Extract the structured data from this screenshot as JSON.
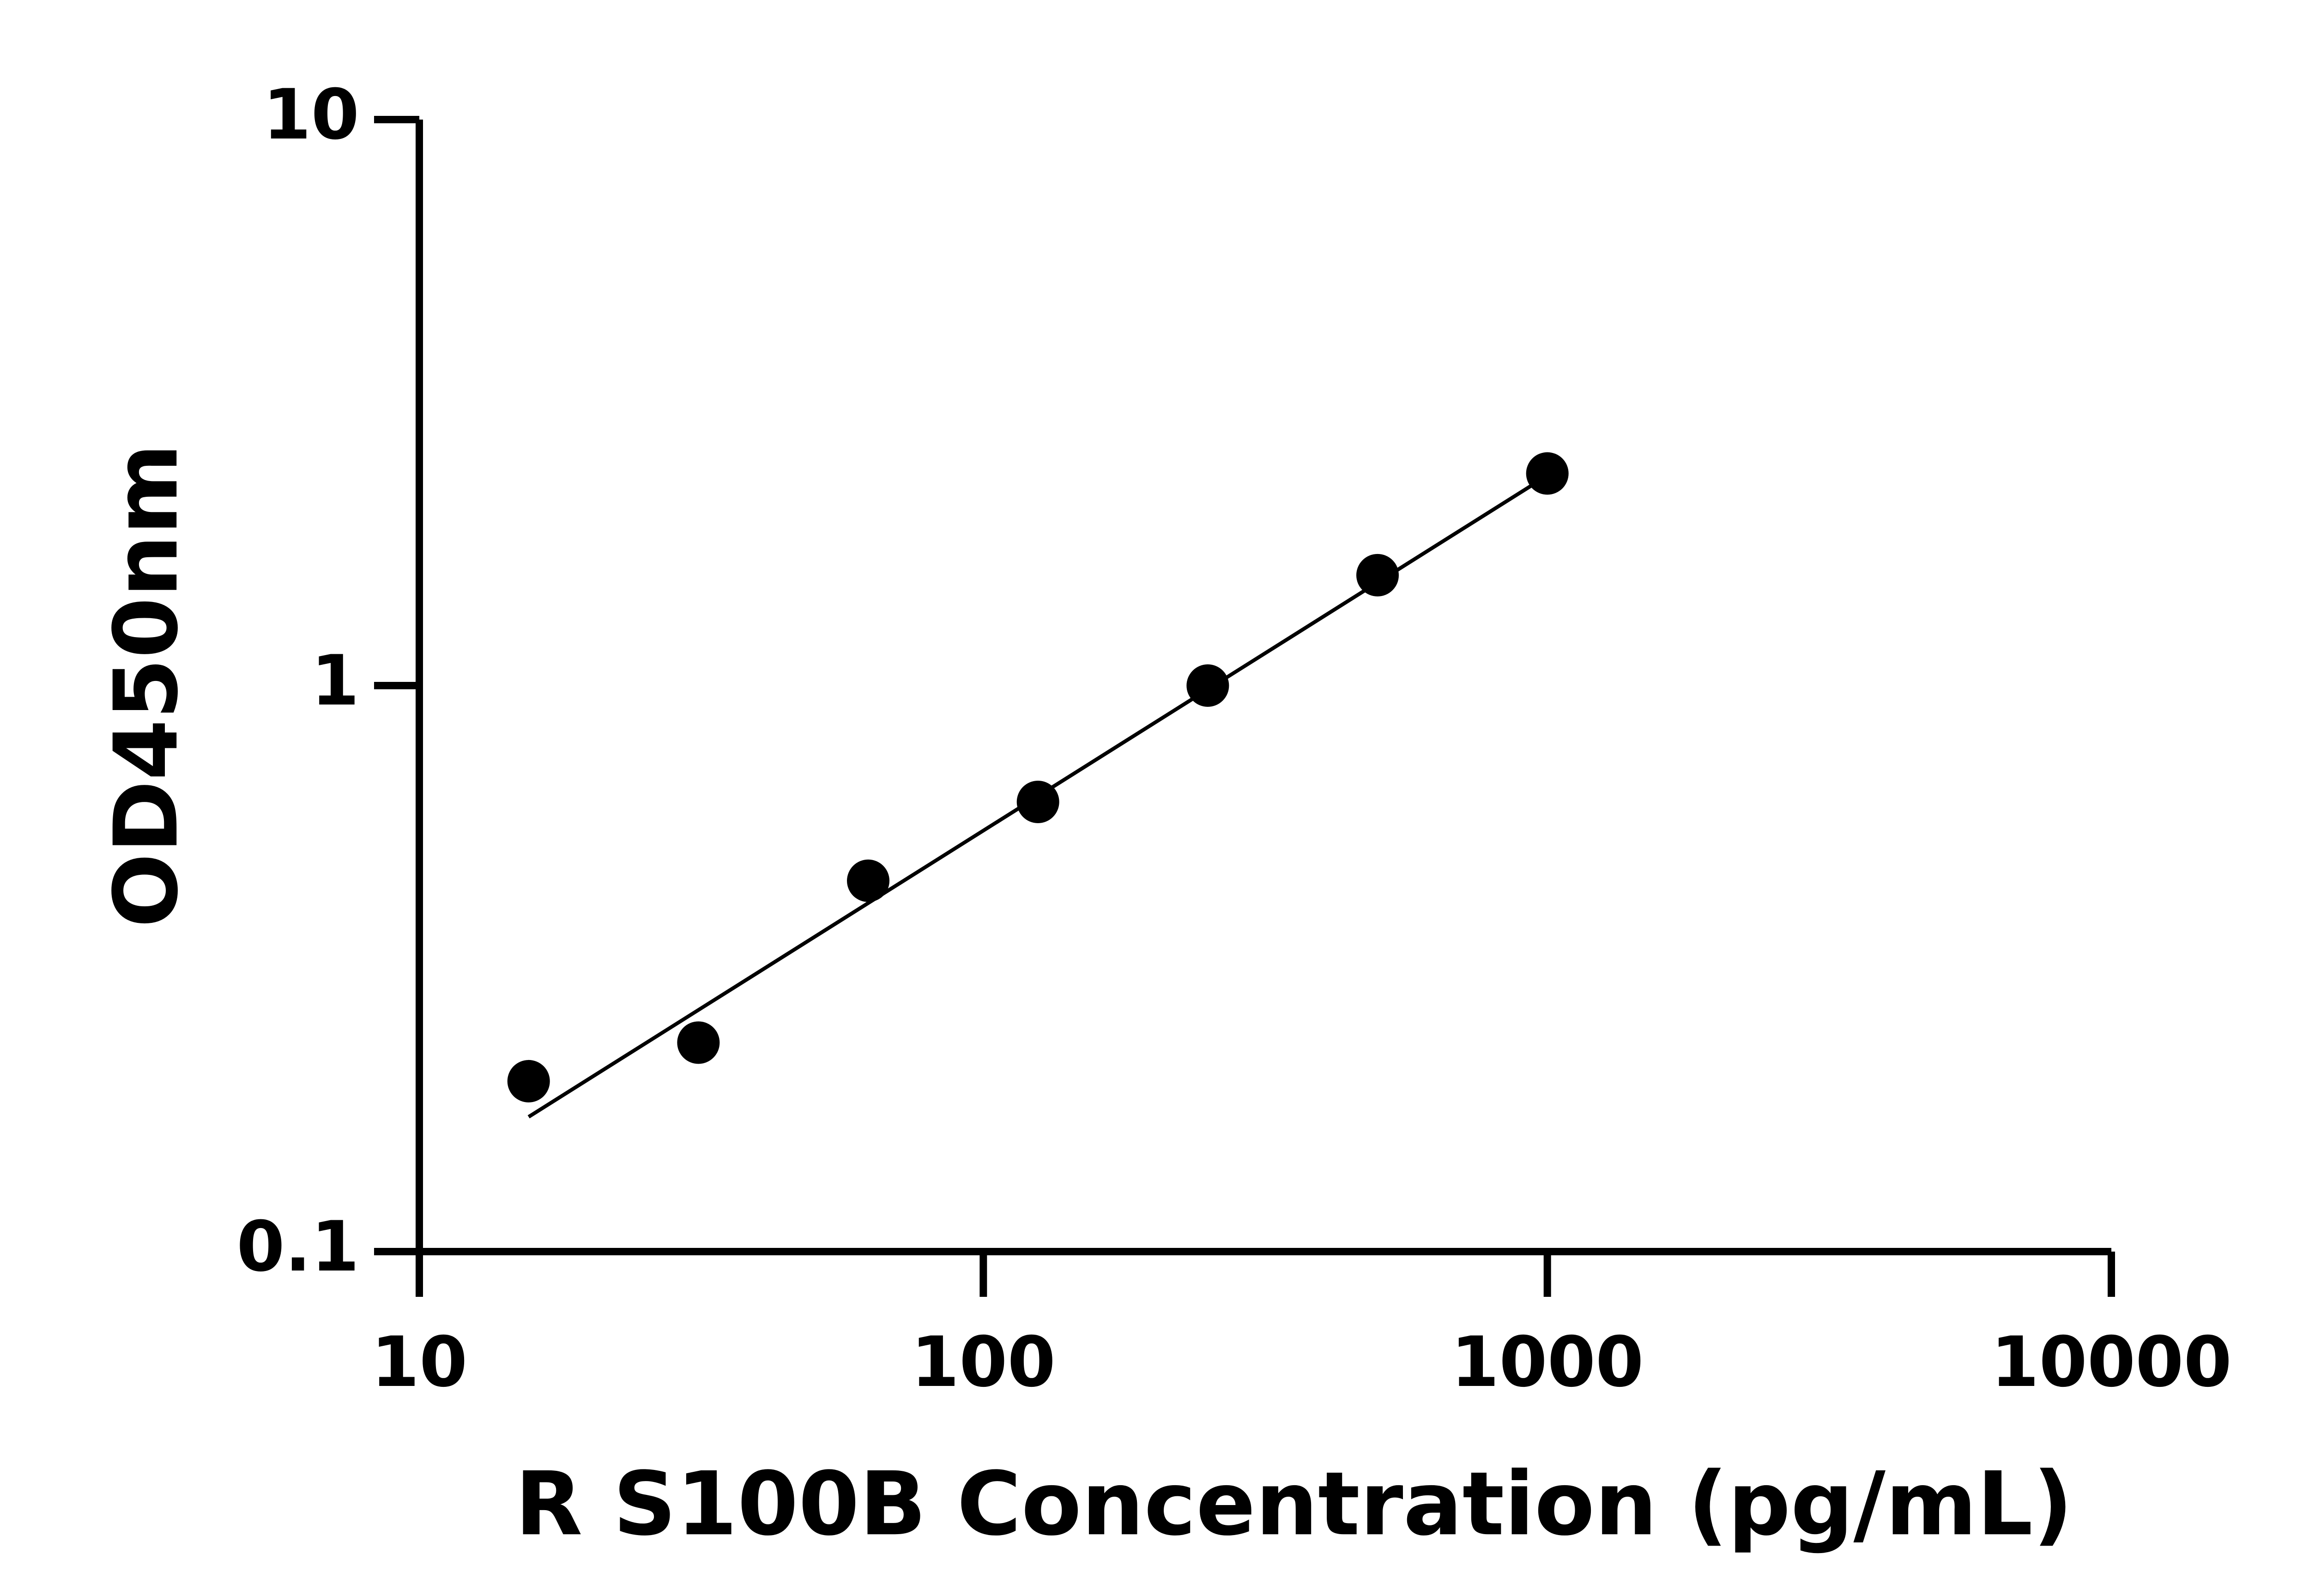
{
  "chart_data": {
    "type": "scatter",
    "x_label": "R S100B Concentration (pg/mL)",
    "y_label": "OD450nm",
    "x": [
      15.625,
      31.25,
      62.5,
      125,
      250,
      500,
      1000
    ],
    "series": [
      {
        "color": "#000000",
        "values": [
          0.2,
          0.234,
          0.452,
          0.623,
          1.0,
          1.567,
          2.37
        ]
      }
    ],
    "fit_line": {
      "x": [
        15.625,
        1000
      ],
      "values": [
        0.173,
        2.35
      ],
      "color": "#000000"
    },
    "xscale": "log",
    "yscale": "log",
    "xlim": [
      10,
      10000
    ],
    "xticks": [
      10,
      100,
      1000,
      10000
    ],
    "ylim": [
      0.1,
      10
    ],
    "yticks": [
      0.1,
      1,
      10
    ],
    "grid": false
  }
}
